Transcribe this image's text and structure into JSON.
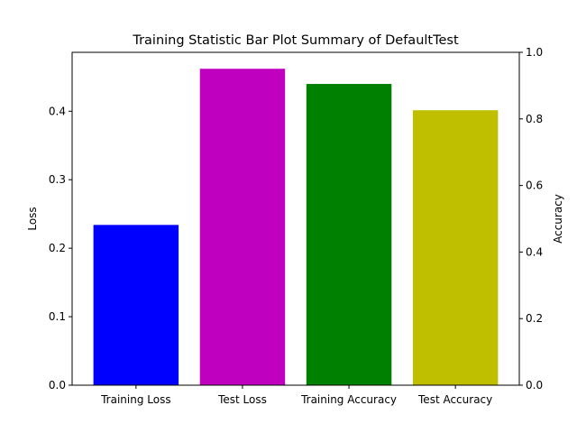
{
  "chart_data": {
    "type": "bar",
    "title": "Training Statistic Bar Plot Summary of DefaultTest",
    "xlabel": "",
    "ylabel": "Loss",
    "ylabel_right": "Accuracy",
    "categories": [
      "Training Loss",
      "Test Loss",
      "Training Accuracy",
      "Test Accuracy"
    ],
    "bars": [
      {
        "category": "Training Loss",
        "axis": "left",
        "value": 0.234,
        "color": "#0000ff"
      },
      {
        "category": "Test Loss",
        "axis": "left",
        "value": 0.462,
        "color": "#bf00bf"
      },
      {
        "category": "Training Accuracy",
        "axis": "right",
        "value": 0.905,
        "color": "#008000"
      },
      {
        "category": "Test Accuracy",
        "axis": "right",
        "value": 0.826,
        "color": "#bfbf00"
      }
    ],
    "ylim": [
      0,
      0.486
    ],
    "ylim_right": [
      0,
      1.0
    ],
    "yticks": [
      "0.0",
      "0.1",
      "0.2",
      "0.3",
      "0.4"
    ],
    "yticks_right": [
      "0.0",
      "0.2",
      "0.4",
      "0.6",
      "0.8",
      "1.0"
    ],
    "grid": false,
    "legend": "none"
  }
}
